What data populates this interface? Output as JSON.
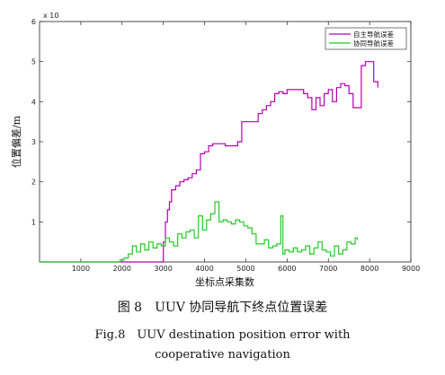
{
  "caption": {
    "cn": "图 8　UUV 协同导航下终点位置误差",
    "en_line1": "Fig.8　UUV destination position error with",
    "en_line2": "cooperative navigation"
  },
  "chart_data": {
    "type": "line",
    "title": "",
    "xlabel": "坐标点采集数",
    "ylabel": "位置偏差/m",
    "xlim": [
      0,
      9000
    ],
    "ylim": [
      0,
      6
    ],
    "y_scale_note": "x 10",
    "x_ticks": [
      1000,
      2000,
      3000,
      4000,
      5000,
      6000,
      7000,
      8000,
      9000
    ],
    "y_ticks": [
      1,
      2,
      3,
      4,
      5,
      6
    ],
    "x_tick_labels": [
      "1000",
      "2000",
      "3000",
      "4000",
      "5000",
      "6000",
      "7000",
      "8000",
      "9000"
    ],
    "y_tick_labels": [
      "1",
      "2",
      "3",
      "4",
      "5",
      "6"
    ],
    "grid": false,
    "legend_position": "top-right",
    "series": [
      {
        "name": "自主导航误差",
        "color": "#b400b4",
        "step": true,
        "x": [
          0,
          1800,
          2900,
          3000,
          3050,
          3100,
          3150,
          3200,
          3300,
          3400,
          3500,
          3600,
          3700,
          3800,
          3900,
          4000,
          4100,
          4200,
          4500,
          4800,
          4900,
          5200,
          5300,
          5400,
          5500,
          5600,
          5700,
          5800,
          5900,
          6000,
          6200,
          6400,
          6500,
          6600,
          6700,
          6800,
          6900,
          7000,
          7100,
          7200,
          7300,
          7400,
          7500,
          7600,
          7800,
          7900,
          8000,
          8100,
          8200
        ],
        "y": [
          0,
          0,
          0,
          0.5,
          1.0,
          1.3,
          1.5,
          1.8,
          1.9,
          2.0,
          2.05,
          2.1,
          2.2,
          2.3,
          2.7,
          2.75,
          2.9,
          2.95,
          2.9,
          3.0,
          3.5,
          3.5,
          3.7,
          3.8,
          3.9,
          4.0,
          4.2,
          4.25,
          4.2,
          4.3,
          4.3,
          4.2,
          4.1,
          3.8,
          4.1,
          3.9,
          4.2,
          4.3,
          4.0,
          4.35,
          4.45,
          4.4,
          4.2,
          3.85,
          4.9,
          5.0,
          5.0,
          4.5,
          4.35
        ]
      },
      {
        "name": "协同导航误差",
        "color": "#22cc22",
        "step": true,
        "x": [
          0,
          1800,
          1950,
          2050,
          2150,
          2250,
          2350,
          2450,
          2550,
          2650,
          2750,
          2850,
          2950,
          3050,
          3150,
          3250,
          3350,
          3450,
          3550,
          3650,
          3750,
          3850,
          3950,
          4050,
          4150,
          4250,
          4350,
          4450,
          4550,
          4650,
          4750,
          4850,
          4950,
          5050,
          5150,
          5250,
          5350,
          5450,
          5550,
          5650,
          5750,
          5850,
          5900,
          5950,
          6050,
          6150,
          6250,
          6350,
          6450,
          6550,
          6650,
          6750,
          6850,
          6950,
          7050,
          7150,
          7250,
          7350,
          7450,
          7550,
          7650,
          7700
        ],
        "y": [
          0,
          0,
          0.05,
          0.1,
          0.2,
          0.4,
          0.25,
          0.45,
          0.3,
          0.5,
          0.35,
          0.45,
          0.4,
          0.6,
          0.5,
          0.4,
          0.7,
          0.6,
          0.75,
          0.8,
          0.6,
          1.15,
          0.8,
          1.05,
          1.2,
          1.5,
          1.0,
          1.05,
          1.0,
          0.95,
          1.05,
          1.0,
          0.9,
          0.85,
          0.7,
          0.45,
          0.45,
          0.55,
          0.35,
          0.4,
          0.45,
          1.15,
          0.2,
          0.3,
          0.25,
          0.35,
          0.25,
          0.3,
          0.4,
          0.2,
          0.35,
          0.5,
          0.3,
          0.25,
          0.15,
          0.4,
          0.2,
          0.3,
          0.5,
          0.45,
          0.6,
          0.55
        ]
      }
    ]
  }
}
